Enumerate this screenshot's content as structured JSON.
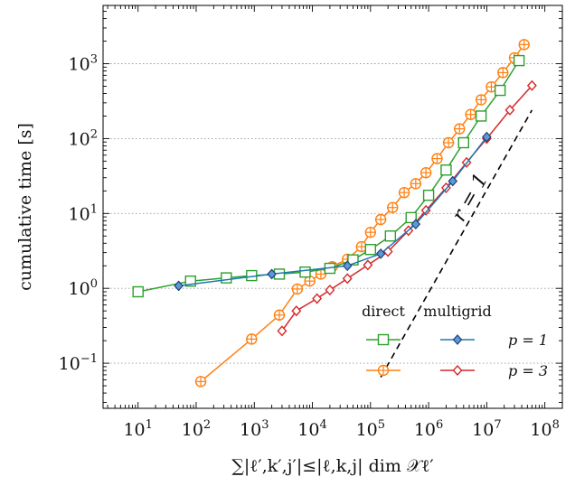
{
  "chart_data": {
    "type": "line",
    "xscale": "log",
    "yscale": "log",
    "xlim": [
      2.5,
      200000000.0
    ],
    "ylim": [
      0.025,
      6000
    ],
    "xticks": [
      10,
      100,
      1000,
      10000,
      100000,
      1000000,
      10000000,
      100000000
    ],
    "xtick_labels": [
      {
        "base": "10",
        "exp": "1"
      },
      {
        "base": "10",
        "exp": "2"
      },
      {
        "base": "10",
        "exp": "3"
      },
      {
        "base": "10",
        "exp": "4"
      },
      {
        "base": "10",
        "exp": "5"
      },
      {
        "base": "10",
        "exp": "6"
      },
      {
        "base": "10",
        "exp": "7"
      },
      {
        "base": "10",
        "exp": "8"
      }
    ],
    "yticks": [
      0.1,
      1,
      10,
      100,
      1000
    ],
    "ytick_labels": [
      {
        "base": "10",
        "exp": "−1"
      },
      {
        "base": "10",
        "exp": "0"
      },
      {
        "base": "10",
        "exp": "1"
      },
      {
        "base": "10",
        "exp": "2"
      },
      {
        "base": "10",
        "exp": "3"
      }
    ],
    "ylabel": "cumulative time [s]",
    "xlabel": "∑|ℓ′,k′,j′|≤|ℓ,k,j| dim 𝒳ℓ′",
    "grid": "horizontal-dotted",
    "legend": {
      "placement": "bottom-right",
      "col_headers": [
        "direct",
        "multigrid"
      ],
      "row_labels": [
        "p = 1",
        "p = 3"
      ]
    },
    "annotation": {
      "text": "r = 1",
      "line": [
        [
          150000,
          0.065
        ],
        [
          60000000,
          240
        ]
      ]
    },
    "series": [
      {
        "key": "direct_p1",
        "color": "#2ca02c",
        "marker": "square",
        "x": [
          10,
          80,
          330,
          900,
          2700,
          7500,
          20000,
          50000,
          100000,
          220000,
          500000,
          1000000,
          2000000,
          4000000,
          8000000,
          17000000,
          36000000
        ],
        "y": [
          0.9,
          1.25,
          1.38,
          1.48,
          1.55,
          1.65,
          1.85,
          2.4,
          3.3,
          5.0,
          8.8,
          17.5,
          38,
          88,
          200,
          440,
          1100
        ]
      },
      {
        "key": "direct_p3",
        "color": "#ff7f0e",
        "marker": "circle-plus",
        "x": [
          120,
          900,
          2700,
          5500,
          9000,
          14000,
          22000,
          40000,
          70000,
          100000,
          150000,
          240000,
          380000,
          600000,
          900000,
          1400000,
          2200000,
          3400000,
          5300000,
          8000000,
          12000000,
          19000000,
          30000000,
          44000000
        ],
        "y": [
          0.057,
          0.21,
          0.44,
          0.98,
          1.25,
          1.55,
          1.95,
          2.45,
          3.6,
          5.6,
          8.3,
          12,
          19,
          25,
          35,
          54,
          88,
          135,
          210,
          330,
          490,
          760,
          1200,
          1800
        ]
      },
      {
        "key": "multigrid_p1",
        "color": "#1f77b4",
        "marker": "diamond",
        "x": [
          50,
          2000,
          40000,
          150000,
          600000,
          2600000,
          10000000
        ],
        "y": [
          1.08,
          1.55,
          2.0,
          2.9,
          7.2,
          27,
          105
        ]
      },
      {
        "key": "multigrid_p3",
        "color": "#d62728",
        "marker": "diamond",
        "x": [
          3000,
          5300,
          12000,
          20000,
          40000,
          90000,
          200000,
          450000,
          900000,
          2000000,
          4500000,
          10000000,
          25000000,
          60000000
        ],
        "y": [
          0.27,
          0.5,
          0.73,
          0.95,
          1.35,
          2.05,
          3.1,
          5.9,
          11,
          22,
          48,
          100,
          240,
          510
        ]
      }
    ]
  }
}
